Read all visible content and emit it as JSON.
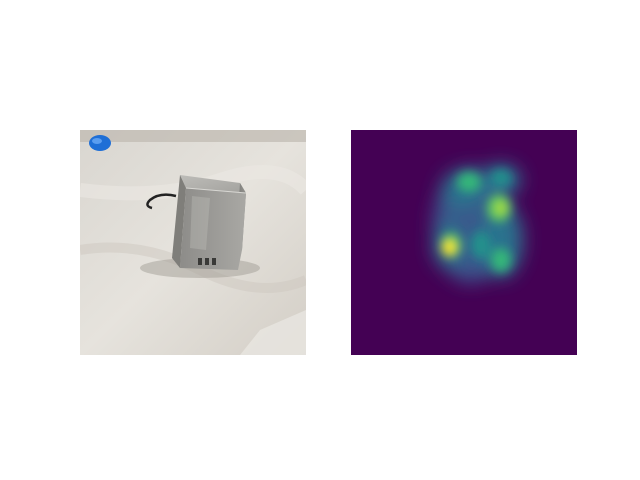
{
  "figure": {
    "panels": [
      {
        "name": "photo",
        "description_icon": "device-photo"
      },
      {
        "name": "heatmap",
        "colormap": "viridis"
      }
    ]
  },
  "colors": {
    "page_background": "#ffffff",
    "floor_light": "#e6e3dd",
    "floor_dark": "#c9c4bc",
    "device_metal": "#9b9a97",
    "device_dark": "#6f6e6b",
    "blue_object": "#1f6fd6",
    "heatmap_background": "#440154",
    "heatmap_low": "#31688e",
    "heatmap_mid": "#21918c",
    "heatmap_high": "#5ec962",
    "heatmap_peak": "#fde725"
  }
}
